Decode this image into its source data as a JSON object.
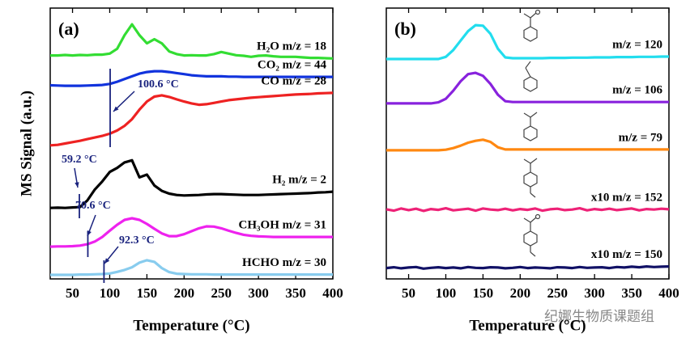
{
  "chart_data": [
    {
      "type": "line",
      "panel": "(a)",
      "ylabel": "MS Signal (a.u.)",
      "xlabel": "Temperature (°C)",
      "xlim": [
        20,
        400
      ],
      "ylim": [
        0,
        100
      ],
      "xticks": [
        50,
        100,
        150,
        200,
        250,
        300,
        350,
        400
      ],
      "x": [
        20,
        30,
        40,
        50,
        60,
        70,
        80,
        90,
        100,
        110,
        120,
        130,
        140,
        150,
        160,
        170,
        180,
        190,
        200,
        210,
        220,
        230,
        240,
        250,
        260,
        270,
        280,
        290,
        300,
        310,
        320,
        330,
        340,
        350,
        360,
        370,
        380,
        390,
        400
      ],
      "series": [
        {
          "name": "H₂O m/z = 18",
          "color": "#33dd33",
          "values": [
            82.5,
            82.5,
            82.7,
            82.5,
            82.7,
            82.6,
            82.8,
            82.8,
            83.2,
            85,
            90,
            94,
            90,
            87,
            88.5,
            87,
            84,
            83,
            82.5,
            82.6,
            82.5,
            82.5,
            83,
            83.8,
            83.2,
            82.6,
            82.4,
            82,
            82.4,
            82.5,
            82.2,
            82,
            82,
            82,
            81.8,
            81.6,
            81.6,
            81.5,
            81.4
          ]
        },
        {
          "name": "CO₂ m/z = 44",
          "color": "#1133dd",
          "values": [
            71.5,
            71.4,
            71.3,
            71.3,
            71.3,
            71.4,
            71.5,
            71.6,
            72,
            72.8,
            73.8,
            74.8,
            75.8,
            76.4,
            76.7,
            76.7,
            76.4,
            76,
            75.6,
            75.2,
            75,
            74.8,
            74.8,
            74.8,
            74.7,
            74.7,
            74.6,
            74.6,
            74.6,
            74.6,
            74.6,
            74.6,
            74.6,
            74.6,
            74.6,
            74.6,
            74.6,
            74.6,
            74.6
          ]
        },
        {
          "name": "CO m/z = 28",
          "color": "#ee2222",
          "values": [
            49.3,
            49.5,
            50,
            50.5,
            51,
            51.6,
            52.2,
            52.8,
            53.6,
            54.8,
            56.5,
            59,
            62.5,
            65.5,
            67.3,
            67.8,
            67.2,
            66.3,
            65.5,
            64.8,
            64.3,
            64.5,
            65,
            65.5,
            66,
            66.3,
            66.6,
            66.9,
            67.1,
            67.3,
            67.5,
            67.7,
            67.9,
            68.1,
            68.2,
            68.3,
            68.5,
            68.6,
            68.7
          ]
        },
        {
          "name": "H₂ m/z = 2",
          "color": "#000000",
          "values": [
            26.2,
            26.3,
            26.2,
            26.4,
            26.5,
            29,
            33,
            36,
            39.5,
            41,
            43,
            43.8,
            37.5,
            38.5,
            34.5,
            32.5,
            31.5,
            31,
            30.8,
            30.9,
            31,
            31.2,
            31.3,
            31.3,
            31.2,
            31.1,
            31,
            31,
            31,
            31.1,
            31.2,
            31.3,
            31.4,
            31.5,
            31.6,
            31.7,
            31.9,
            32,
            32.2
          ]
        },
        {
          "name": "CH₃OH m/z = 31",
          "color": "#ee22ee",
          "values": [
            11.9,
            12,
            12,
            12.1,
            12.3,
            12.8,
            13.8,
            15.5,
            17.8,
            20,
            21.8,
            22.4,
            21.8,
            20.3,
            18.5,
            16.8,
            15.8,
            15.8,
            16.5,
            17.6,
            18.7,
            19.4,
            19.3,
            18.7,
            17.8,
            17,
            16.3,
            15.9,
            15.7,
            15.6,
            15.5,
            15.5,
            15.5,
            15.5,
            15.5,
            15.5,
            15.5,
            15.5,
            15.5
          ]
        },
        {
          "name": "HCHO m/z = 30",
          "color": "#88ccee",
          "values": [
            1.5,
            1.5,
            1.5,
            1.5,
            1.6,
            1.6,
            1.7,
            1.8,
            2,
            2.6,
            3.3,
            4.3,
            6,
            6.9,
            6.3,
            4,
            2.5,
            1.9,
            1.8,
            1.7,
            1.7,
            1.7,
            1.6,
            1.6,
            1.6,
            1.6,
            1.6,
            1.6,
            1.6,
            1.6,
            1.6,
            1.6,
            1.6,
            1.6,
            1.6,
            1.6,
            1.6,
            1.6,
            1.6
          ]
        }
      ],
      "annotations": [
        {
          "text": "100.6 °C",
          "x": 100.6
        },
        {
          "text": "59.2 °C",
          "x": 59.2
        },
        {
          "text": "70.6 °C",
          "x": 70.6
        },
        {
          "text": "92.3 °C",
          "x": 92.3
        }
      ]
    },
    {
      "type": "line",
      "panel": "(b)",
      "xlabel": "Temperature (°C)",
      "xlim": [
        20,
        400
      ],
      "ylim": [
        0,
        100
      ],
      "xticks": [
        50,
        100,
        150,
        200,
        250,
        300,
        350,
        400
      ],
      "x": [
        20,
        30,
        40,
        50,
        60,
        70,
        80,
        90,
        100,
        110,
        120,
        130,
        140,
        150,
        160,
        170,
        180,
        190,
        200,
        210,
        220,
        230,
        240,
        250,
        260,
        270,
        280,
        290,
        300,
        310,
        320,
        330,
        340,
        350,
        360,
        370,
        380,
        390,
        400
      ],
      "series": [
        {
          "name": "m/z = 120",
          "color": "#22ddee",
          "values": [
            81.2,
            81.2,
            81.2,
            81.2,
            81.2,
            81.2,
            81.2,
            81.2,
            82,
            84.5,
            88,
            91.5,
            93.7,
            93.5,
            90.5,
            85,
            81.8,
            81.5,
            81.5,
            81.5,
            81.5,
            81.5,
            81.6,
            81.6,
            81.6,
            81.7,
            81.7,
            81.7,
            81.8,
            81.8,
            81.8,
            81.9,
            81.9,
            81.9,
            82,
            82,
            82,
            82.1,
            82.1
          ]
        },
        {
          "name": "m/z = 106",
          "color": "#8822dd",
          "values": [
            64.8,
            64.8,
            64.8,
            64.8,
            64.8,
            64.8,
            64.8,
            65.2,
            66.5,
            69.5,
            73,
            75.6,
            76.1,
            75,
            72,
            68,
            65.6,
            65.3,
            65.3,
            65.3,
            65.3,
            65.3,
            65.3,
            65.3,
            65.3,
            65.3,
            65.3,
            65.3,
            65.3,
            65.3,
            65.3,
            65.3,
            65.3,
            65.3,
            65.3,
            65.3,
            65.3,
            65.3,
            65.3
          ]
        },
        {
          "name": "m/z = 79",
          "color": "#ff8811",
          "values": [
            47.5,
            47.5,
            47.5,
            47.5,
            47.5,
            47.5,
            47.5,
            47.5,
            47.7,
            48.3,
            49.2,
            50.3,
            51,
            51.4,
            50.6,
            48.6,
            47.8,
            47.8,
            47.8,
            47.8,
            47.8,
            47.8,
            47.8,
            47.8,
            47.8,
            47.8,
            47.8,
            47.8,
            47.8,
            47.8,
            47.8,
            47.8,
            47.8,
            47.8,
            47.8,
            47.8,
            47.8,
            47.8,
            47.8
          ]
        },
        {
          "name": "x10 m/z = 152",
          "color": "#ee2277",
          "values": [
            25.7,
            25.2,
            26,
            25.4,
            25.9,
            25.1,
            25.8,
            25.5,
            26.1,
            25.3,
            25.6,
            25.9,
            25.2,
            26,
            25.6,
            25.4,
            25.9,
            25.3,
            25.8,
            25.5,
            26,
            25.2,
            25.7,
            25.9,
            25.4,
            25.6,
            26.1,
            25.3,
            25.8,
            25.5,
            25.9,
            25.4,
            25.7,
            26,
            25.3,
            25.8,
            25.6,
            25.9,
            25.7
          ]
        },
        {
          "name": "x10 m/z = 150",
          "color": "#111166",
          "values": [
            4,
            4.3,
            3.9,
            4.2,
            4.4,
            3.8,
            4.1,
            4.3,
            4,
            4.2,
            3.9,
            4.4,
            4.1,
            4,
            4.3,
            4.2,
            3.9,
            4.1,
            4.4,
            4,
            4.2,
            4.1,
            3.9,
            4.3,
            4.2,
            4,
            4.4,
            4.1,
            4.2,
            4.3,
            4,
            4.4,
            4.2,
            4.5,
            4.3,
            4.6,
            4.4,
            4.5,
            4.6
          ]
        }
      ]
    }
  ],
  "watermark": "纪娜生物质课题组"
}
